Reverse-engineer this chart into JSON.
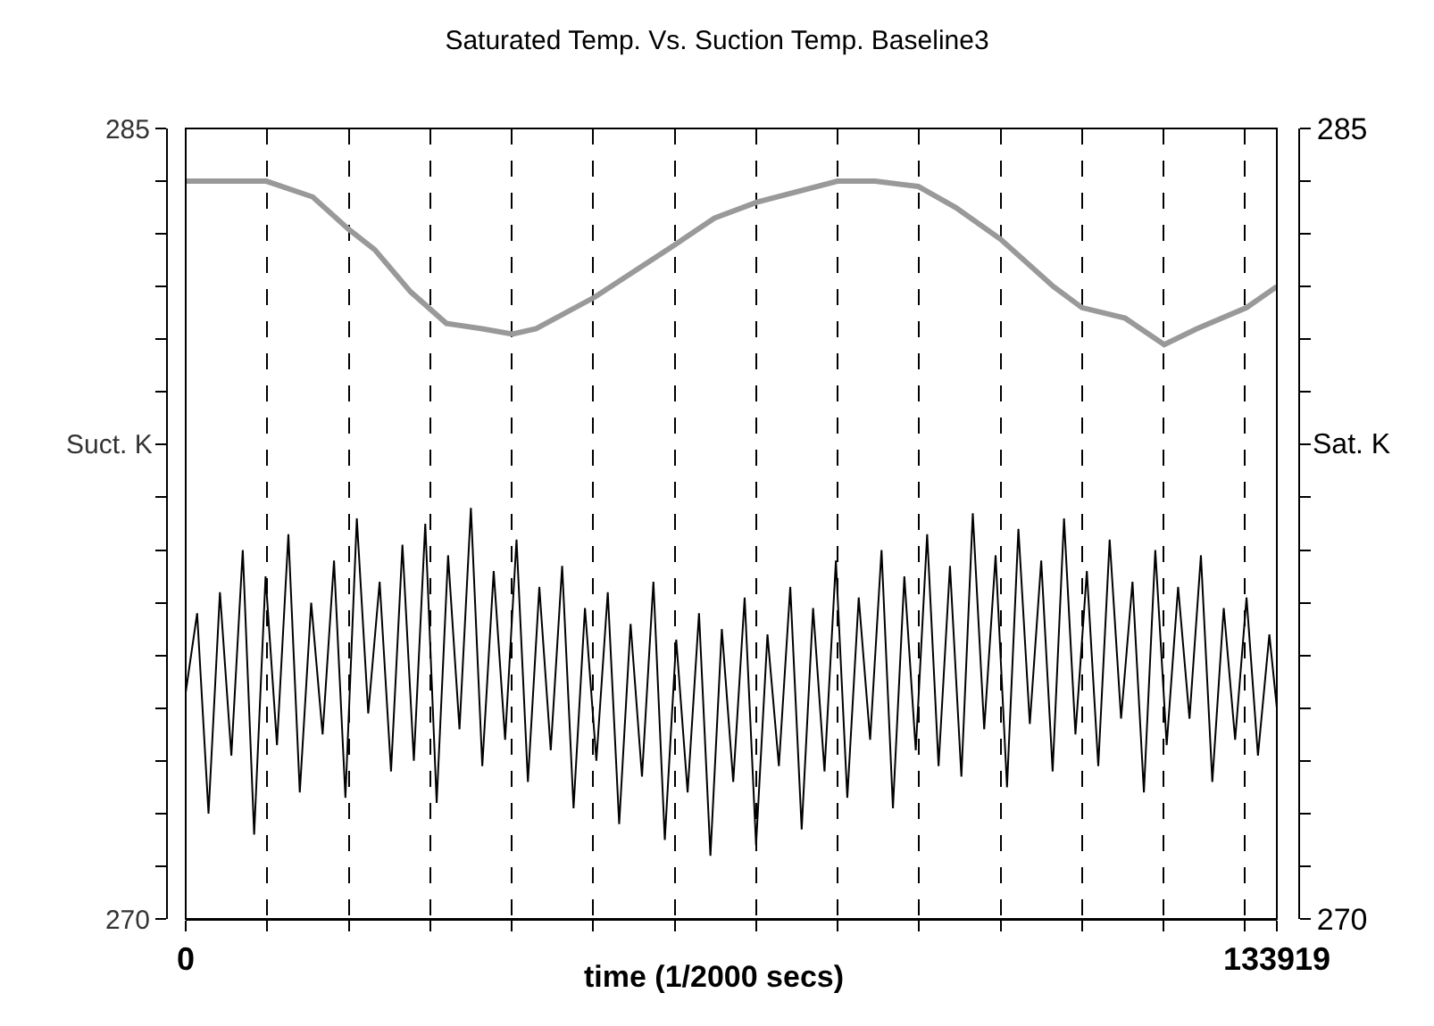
{
  "chart_data": {
    "type": "line",
    "title": "Saturated Temp. Vs. Suction Temp. Baseline3",
    "xlabel": "time (1/2000 secs)",
    "ylabel": "Suct. K",
    "y2label": "Sat. K",
    "xlim": [
      0,
      133919
    ],
    "xticks": [
      0,
      {
        "value": 10000,
        "label": null
      },
      {
        "value": 20000,
        "label": null
      },
      {
        "value": 30000,
        "label": null
      },
      {
        "value": 40000,
        "label": null
      },
      {
        "value": 50000,
        "label": null
      },
      {
        "value": 60000,
        "label": null
      },
      {
        "value": 70000,
        "label": null
      },
      {
        "value": 80000,
        "label": null
      },
      {
        "value": 90000,
        "label": null
      },
      {
        "value": 100000,
        "label": null
      },
      {
        "value": 110000,
        "label": null
      },
      {
        "value": 120000,
        "label": null
      },
      {
        "value": 130000,
        "label": null
      },
      133919
    ],
    "ylim": [
      270,
      285
    ],
    "yticks": [
      270,
      {
        "value": 271,
        "label": null
      },
      {
        "value": 272,
        "label": null
      },
      {
        "value": 273,
        "label": null
      },
      {
        "value": 274,
        "label": null
      },
      {
        "value": 275,
        "label": null
      },
      {
        "value": 276,
        "label": null
      },
      {
        "value": 277,
        "label": null
      },
      {
        "value": 278,
        "label": null
      },
      {
        "value": 279,
        "label": null
      },
      {
        "value": 280,
        "label": null
      },
      {
        "value": 281,
        "label": null
      },
      {
        "value": 282,
        "label": null
      },
      {
        "value": 283,
        "label": null
      },
      {
        "value": 284,
        "label": null
      },
      285
    ],
    "y2lim": [
      270,
      285
    ],
    "y2ticks": [
      270,
      {
        "value": 271,
        "label": null
      },
      {
        "value": 272,
        "label": null
      },
      {
        "value": 273,
        "label": null
      },
      {
        "value": 274,
        "label": null
      },
      {
        "value": 275,
        "label": null
      },
      {
        "value": 276,
        "label": null
      },
      {
        "value": 277,
        "label": null
      },
      {
        "value": 278,
        "label": null
      },
      {
        "value": 279,
        "label": null
      },
      {
        "value": 280,
        "label": null
      },
      {
        "value": 281,
        "label": null
      },
      {
        "value": 282,
        "label": null
      },
      {
        "value": 283,
        "label": null
      },
      {
        "value": 284,
        "label": null
      },
      285
    ],
    "grid": "x",
    "marker": "none",
    "line_style": "solid",
    "series": [
      {
        "color": "#000000",
        "axis": "y",
        "x": [
          0,
          1400,
          2800,
          4200,
          5600,
          7000,
          8400,
          9800,
          11200,
          12600,
          14000,
          15400,
          16800,
          18200,
          19600,
          21000,
          22400,
          23800,
          25200,
          26600,
          28000,
          29400,
          30800,
          32200,
          33600,
          35000,
          36400,
          37800,
          39200,
          40600,
          42000,
          43400,
          44800,
          46200,
          47600,
          49000,
          50400,
          51800,
          53200,
          54600,
          56000,
          57400,
          58800,
          60200,
          61600,
          63000,
          64400,
          65800,
          67200,
          68600,
          70000,
          71400,
          72800,
          74200,
          75600,
          77000,
          78400,
          79800,
          81200,
          82600,
          84000,
          85400,
          86800,
          88200,
          89600,
          91000,
          92400,
          93800,
          95200,
          96600,
          98000,
          99400,
          100800,
          102200,
          103600,
          105000,
          106400,
          107800,
          109200,
          110600,
          112000,
          113400,
          114800,
          116200,
          117600,
          119000,
          120400,
          121800,
          123200,
          124600,
          126000,
          127400,
          128800,
          130200,
          131600,
          133000,
          133919
        ],
        "values": [
          274.3,
          275.8,
          272.0,
          276.2,
          273.1,
          277.0,
          271.6,
          276.5,
          273.3,
          277.3,
          272.4,
          276.0,
          273.5,
          276.8,
          272.3,
          277.6,
          273.9,
          276.4,
          272.8,
          277.1,
          273.0,
          277.5,
          272.2,
          276.9,
          273.6,
          277.8,
          272.9,
          276.6,
          273.4,
          277.2,
          272.6,
          276.3,
          273.2,
          276.7,
          272.1,
          275.9,
          273.0,
          276.2,
          271.8,
          275.6,
          272.7,
          276.4,
          271.5,
          275.3,
          272.4,
          275.8,
          271.2,
          275.5,
          272.6,
          276.1,
          271.4,
          275.4,
          272.9,
          276.3,
          271.7,
          275.9,
          272.8,
          276.8,
          272.3,
          276.1,
          273.4,
          277.0,
          272.1,
          276.5,
          273.2,
          277.3,
          272.9,
          276.7,
          272.7,
          277.7,
          273.6,
          276.9,
          272.5,
          277.4,
          273.7,
          276.8,
          272.8,
          277.6,
          273.5,
          276.6,
          272.9,
          277.2,
          273.8,
          276.4,
          272.4,
          277.0,
          273.3,
          276.3,
          273.8,
          276.9,
          272.6,
          275.9,
          273.4,
          276.1,
          273.1,
          275.4,
          274.0
        ]
      },
      {
        "color": "#999999",
        "axis": "y2",
        "x": [
          0,
          9900,
          15600,
          19900,
          23200,
          27600,
          32000,
          36400,
          40100,
          43000,
          50200,
          60100,
          64900,
          70100,
          80000,
          84600,
          89900,
          94500,
          100000,
          106500,
          110000,
          115300,
          120100,
          124100,
          130200,
          133919
        ],
        "values": [
          284.0,
          284.0,
          283.7,
          283.1,
          282.7,
          281.9,
          281.3,
          281.2,
          281.1,
          281.2,
          281.8,
          282.8,
          283.3,
          283.6,
          284.0,
          284.0,
          283.9,
          283.5,
          282.9,
          282.0,
          281.6,
          281.4,
          280.9,
          281.2,
          281.6,
          282.0
        ]
      }
    ]
  }
}
